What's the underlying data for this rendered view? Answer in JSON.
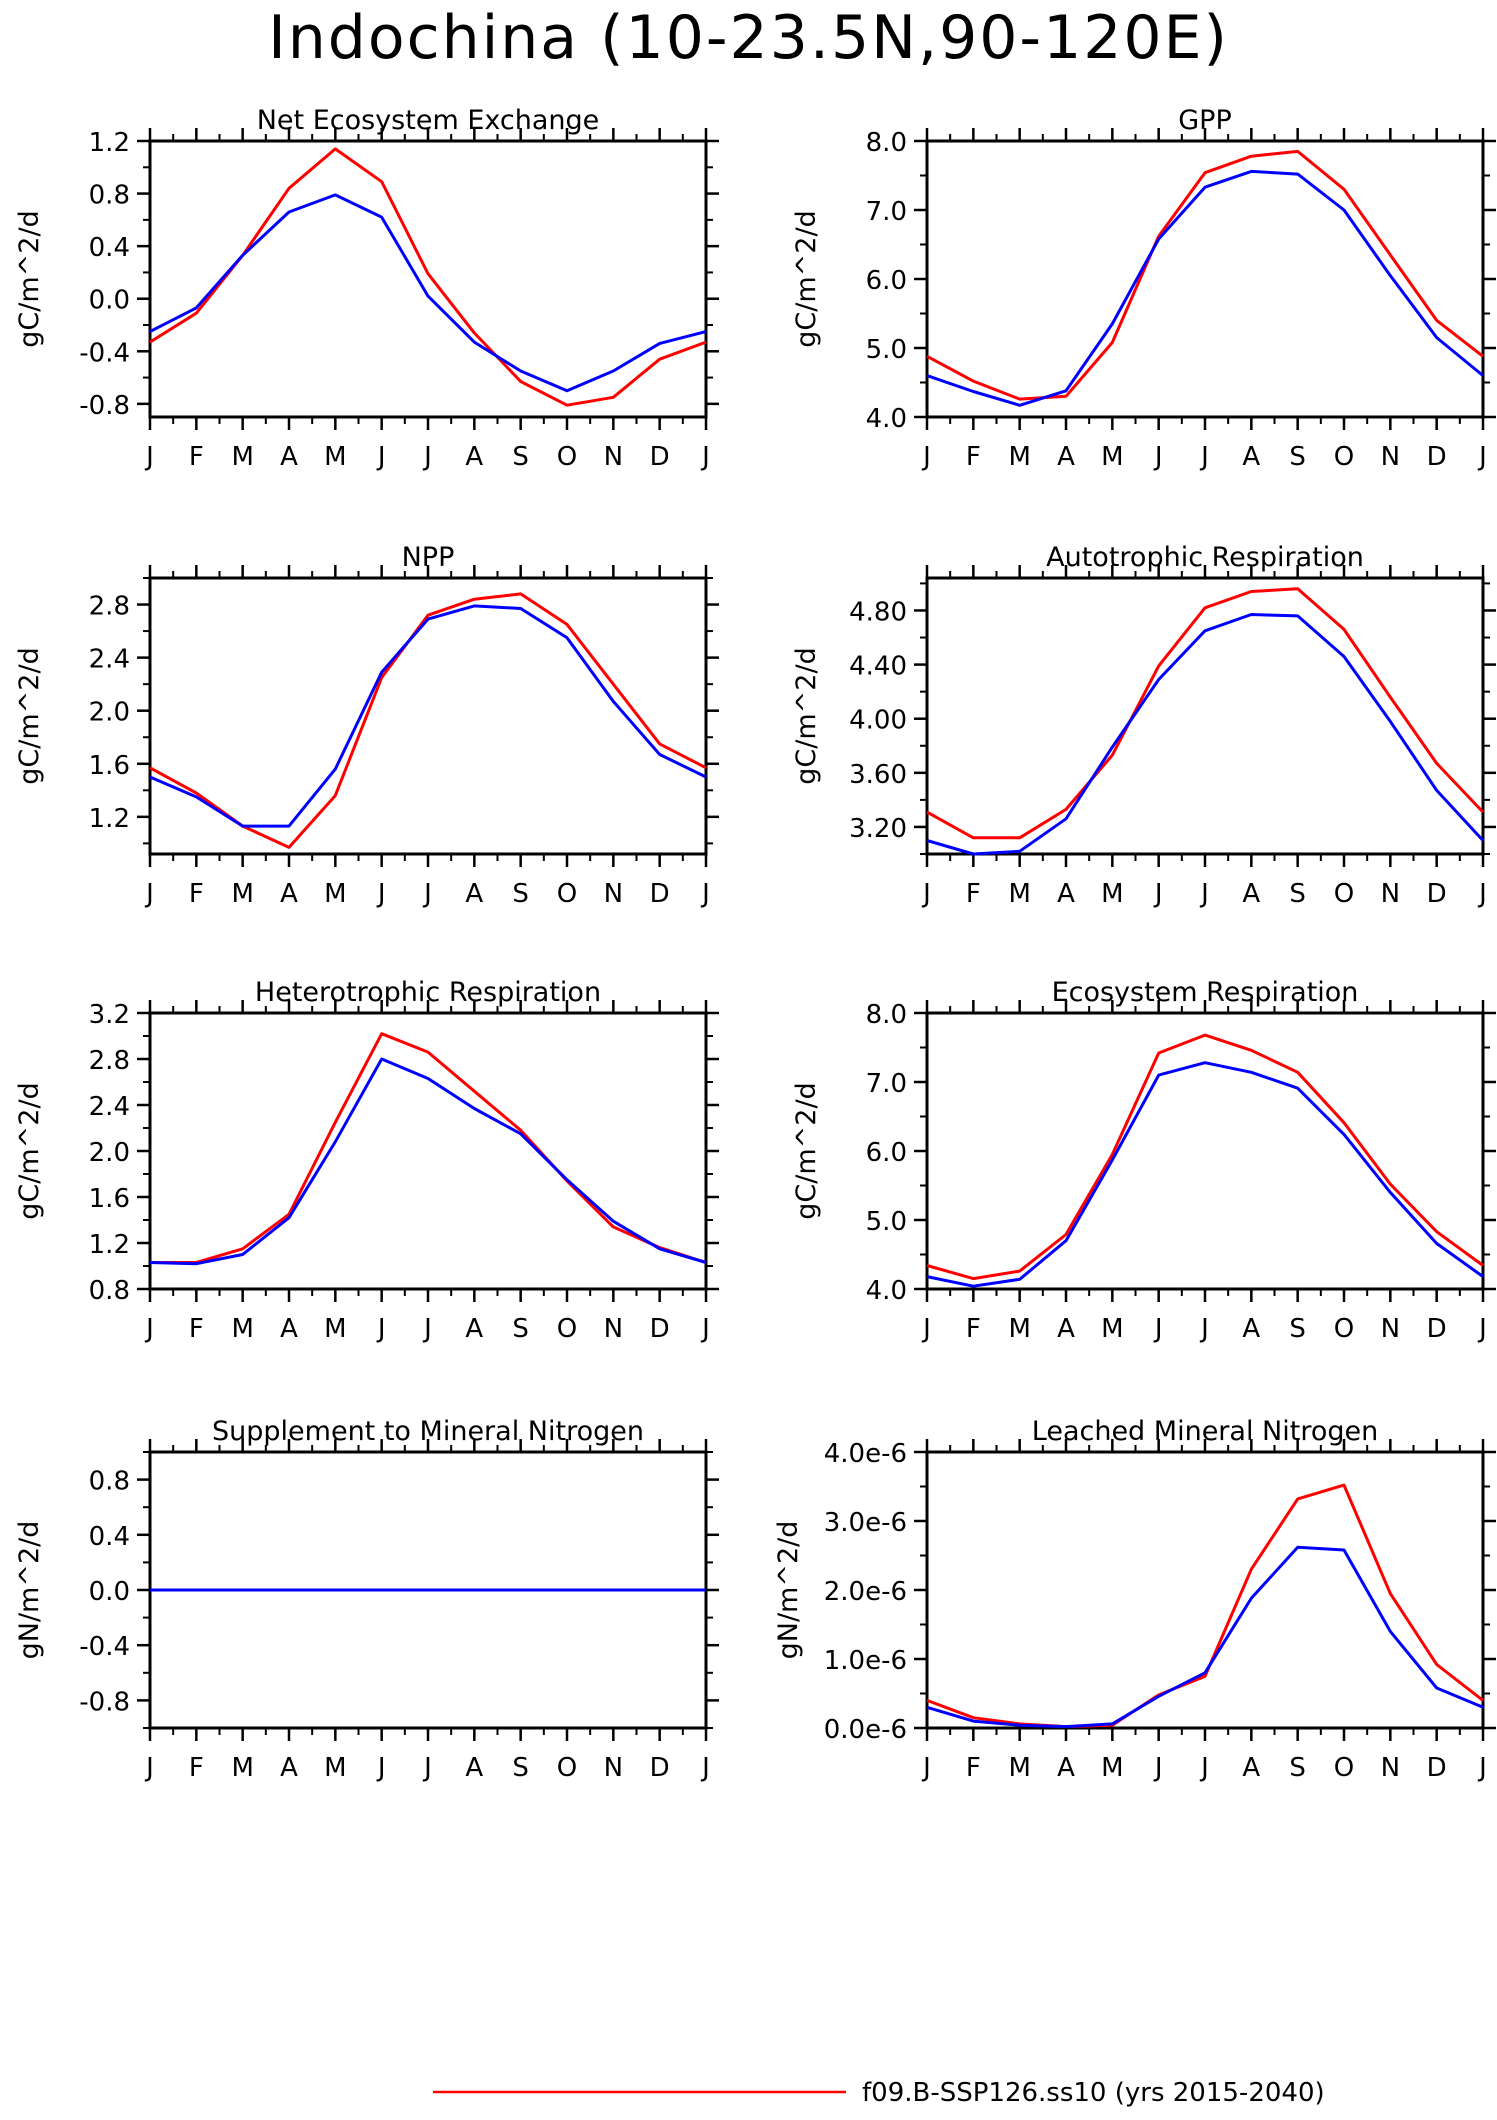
{
  "title": "Indochina (10-23.5N,90-120E)",
  "colors": {
    "series_1": "#ff0000",
    "series_2": "#0000ff"
  },
  "legend": [
    {
      "label": "f09.B-SSP126.ss10 (yrs 2015-2040)",
      "color": "#ff0000"
    }
  ],
  "chart_data": [
    {
      "type": "line",
      "title": "Net Ecosystem Exchange",
      "ylabel": "gC/m^2/d",
      "x": [
        "J",
        "F",
        "M",
        "A",
        "M",
        "J",
        "J",
        "A",
        "S",
        "O",
        "N",
        "D",
        "J"
      ],
      "ylim": [
        -0.9,
        1.2
      ],
      "yticks": [
        -0.8,
        -0.4,
        0.0,
        0.4,
        0.8,
        1.2
      ],
      "ytick_labels": [
        "-0.8",
        "-0.4",
        "0.0",
        "0.4",
        "0.8",
        "1.2"
      ],
      "series": [
        {
          "color": "#ff0000",
          "values": [
            -0.33,
            -0.11,
            0.33,
            0.84,
            1.14,
            0.89,
            0.19,
            -0.26,
            -0.63,
            -0.81,
            -0.75,
            -0.46,
            -0.33
          ]
        },
        {
          "color": "#0000ff",
          "values": [
            -0.25,
            -0.07,
            0.33,
            0.66,
            0.79,
            0.62,
            0.02,
            -0.33,
            -0.55,
            -0.7,
            -0.55,
            -0.34,
            -0.25
          ]
        }
      ]
    },
    {
      "type": "line",
      "title": "GPP",
      "ylabel": "gC/m^2/d",
      "x": [
        "J",
        "F",
        "M",
        "A",
        "M",
        "J",
        "J",
        "A",
        "S",
        "O",
        "N",
        "D",
        "J"
      ],
      "ylim": [
        4.0,
        8.0
      ],
      "yticks": [
        4.0,
        5.0,
        6.0,
        7.0,
        8.0
      ],
      "ytick_labels": [
        "4.0",
        "5.0",
        "6.0",
        "7.0",
        "8.0"
      ],
      "series": [
        {
          "color": "#ff0000",
          "values": [
            4.88,
            4.52,
            4.26,
            4.3,
            5.08,
            6.62,
            7.54,
            7.78,
            7.85,
            7.3,
            6.35,
            5.4,
            4.88
          ]
        },
        {
          "color": "#0000ff",
          "values": [
            4.6,
            4.37,
            4.17,
            4.38,
            5.35,
            6.58,
            7.33,
            7.56,
            7.52,
            7.0,
            6.05,
            5.15,
            4.6
          ]
        }
      ]
    },
    {
      "type": "line",
      "title": "NPP",
      "ylabel": "gC/m^2/d",
      "x": [
        "J",
        "F",
        "M",
        "A",
        "M",
        "J",
        "J",
        "A",
        "S",
        "O",
        "N",
        "D",
        "J"
      ],
      "ylim": [
        0.92,
        3.0
      ],
      "yticks": [
        1.2,
        1.6,
        2.0,
        2.4,
        2.8
      ],
      "ytick_labels": [
        "1.2",
        "1.6",
        "2.0",
        "2.4",
        "2.8"
      ],
      "series": [
        {
          "color": "#ff0000",
          "values": [
            1.57,
            1.38,
            1.13,
            0.97,
            1.36,
            2.25,
            2.72,
            2.84,
            2.88,
            2.65,
            2.2,
            1.75,
            1.57
          ]
        },
        {
          "color": "#0000ff",
          "values": [
            1.5,
            1.35,
            1.13,
            1.13,
            1.56,
            2.29,
            2.69,
            2.79,
            2.77,
            2.55,
            2.07,
            1.67,
            1.5
          ]
        }
      ]
    },
    {
      "type": "line",
      "title": "Autotrophic Respiration",
      "ylabel": "gC/m^2/d",
      "x": [
        "J",
        "F",
        "M",
        "A",
        "M",
        "J",
        "J",
        "A",
        "S",
        "O",
        "N",
        "D",
        "J"
      ],
      "ylim": [
        3.0,
        5.04
      ],
      "yticks": [
        3.2,
        3.6,
        4.0,
        4.4,
        4.8
      ],
      "ytick_labels": [
        "3.20",
        "3.60",
        "4.00",
        "4.40",
        "4.80"
      ],
      "series": [
        {
          "color": "#ff0000",
          "values": [
            3.31,
            3.12,
            3.12,
            3.33,
            3.73,
            4.39,
            4.82,
            4.94,
            4.96,
            4.66,
            4.16,
            3.67,
            3.31
          ]
        },
        {
          "color": "#0000ff",
          "values": [
            3.1,
            3.0,
            3.02,
            3.26,
            3.79,
            4.29,
            4.65,
            4.77,
            4.76,
            4.46,
            3.98,
            3.47,
            3.1
          ]
        }
      ]
    },
    {
      "type": "line",
      "title": "Heterotrophic Respiration",
      "ylabel": "gC/m^2/d",
      "x": [
        "J",
        "F",
        "M",
        "A",
        "M",
        "J",
        "J",
        "A",
        "S",
        "O",
        "N",
        "D",
        "J"
      ],
      "ylim": [
        0.8,
        3.2
      ],
      "yticks": [
        0.8,
        1.2,
        1.6,
        2.0,
        2.4,
        2.8,
        3.2
      ],
      "ytick_labels": [
        "0.8",
        "1.2",
        "1.6",
        "2.0",
        "2.4",
        "2.8",
        "3.2"
      ],
      "series": [
        {
          "color": "#ff0000",
          "values": [
            1.03,
            1.03,
            1.15,
            1.45,
            2.25,
            3.02,
            2.86,
            2.52,
            2.18,
            1.74,
            1.34,
            1.16,
            1.03
          ]
        },
        {
          "color": "#0000ff",
          "values": [
            1.03,
            1.02,
            1.1,
            1.42,
            2.08,
            2.8,
            2.63,
            2.37,
            2.15,
            1.75,
            1.39,
            1.15,
            1.03
          ]
        }
      ]
    },
    {
      "type": "line",
      "title": "Ecosystem Respiration",
      "ylabel": "gC/m^2/d",
      "x": [
        "J",
        "F",
        "M",
        "A",
        "M",
        "J",
        "J",
        "A",
        "S",
        "O",
        "N",
        "D",
        "J"
      ],
      "ylim": [
        4.0,
        8.0
      ],
      "yticks": [
        4.0,
        5.0,
        6.0,
        7.0,
        8.0
      ],
      "ytick_labels": [
        "4.0",
        "5.0",
        "6.0",
        "7.0",
        "8.0"
      ],
      "series": [
        {
          "color": "#ff0000",
          "values": [
            4.34,
            4.15,
            4.26,
            4.79,
            5.95,
            7.42,
            7.68,
            7.46,
            7.14,
            6.41,
            5.52,
            4.83,
            4.34
          ]
        },
        {
          "color": "#0000ff",
          "values": [
            4.18,
            4.04,
            4.14,
            4.7,
            5.87,
            7.1,
            7.28,
            7.14,
            6.91,
            6.24,
            5.4,
            4.66,
            4.18
          ]
        }
      ]
    },
    {
      "type": "line",
      "title": "Supplement to Mineral Nitrogen",
      "ylabel": "gN/m^2/d",
      "x": [
        "J",
        "F",
        "M",
        "A",
        "M",
        "J",
        "J",
        "A",
        "S",
        "O",
        "N",
        "D",
        "J"
      ],
      "ylim": [
        -1.0,
        1.0
      ],
      "yticks": [
        -0.8,
        -0.4,
        0.0,
        0.4,
        0.8
      ],
      "ytick_labels": [
        "-0.8",
        "-0.4",
        "0.0",
        "0.4",
        "0.8"
      ],
      "series": [
        {
          "color": "#ff0000",
          "values": [
            0,
            0,
            0,
            0,
            0,
            0,
            0,
            0,
            0,
            0,
            0,
            0,
            0
          ]
        },
        {
          "color": "#0000ff",
          "values": [
            0,
            0,
            0,
            0,
            0,
            0,
            0,
            0,
            0,
            0,
            0,
            0,
            0
          ]
        }
      ]
    },
    {
      "type": "line",
      "title": "Leached Mineral Nitrogen",
      "ylabel": "gN/m^2/d",
      "x": [
        "J",
        "F",
        "M",
        "A",
        "M",
        "J",
        "J",
        "A",
        "S",
        "O",
        "N",
        "D",
        "J"
      ],
      "ylim": [
        0.0,
        4.0
      ],
      "yticks": [
        0.0,
        1.0,
        2.0,
        3.0,
        4.0
      ],
      "ytick_labels": [
        "0.0e-6",
        "1.0e-6",
        "2.0e-6",
        "3.0e-6",
        "4.0e-6"
      ],
      "series": [
        {
          "color": "#ff0000",
          "values": [
            0.4,
            0.15,
            0.06,
            0.02,
            0.04,
            0.48,
            0.75,
            2.3,
            3.32,
            3.52,
            1.95,
            0.92,
            0.4
          ]
        },
        {
          "color": "#0000ff",
          "values": [
            0.3,
            0.1,
            0.04,
            0.02,
            0.06,
            0.46,
            0.8,
            1.88,
            2.62,
            2.58,
            1.4,
            0.58,
            0.3
          ]
        }
      ]
    }
  ]
}
